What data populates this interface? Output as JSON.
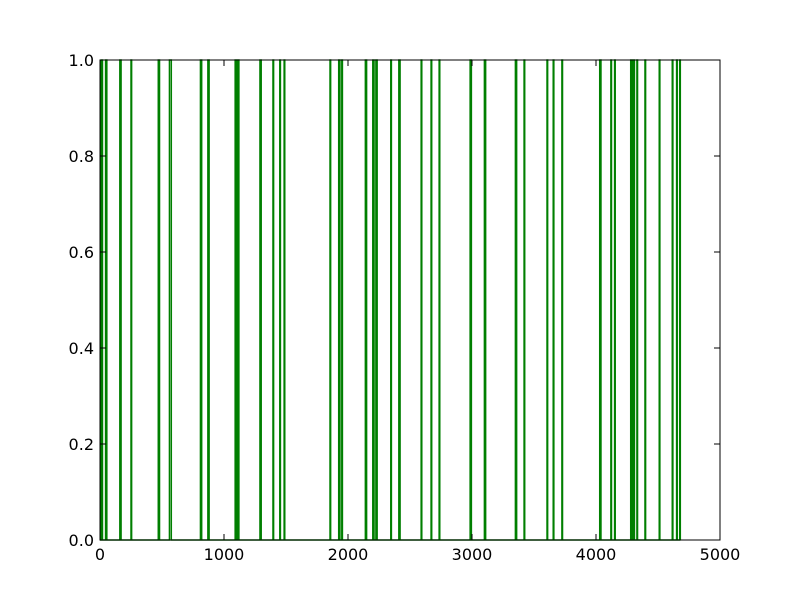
{
  "chart_data": {
    "type": "line",
    "title": "",
    "xlabel": "",
    "ylabel": "",
    "xlim": [
      0,
      5000
    ],
    "ylim": [
      0.0,
      1.0
    ],
    "grid": false,
    "line_color": "#007f00",
    "x_ticks": [
      0,
      1000,
      2000,
      3000,
      4000,
      5000
    ],
    "x_tick_labels": [
      "0",
      "1000",
      "2000",
      "3000",
      "4000",
      "5000"
    ],
    "y_ticks": [
      0.0,
      0.2,
      0.4,
      0.6,
      0.8,
      1.0
    ],
    "y_tick_labels": [
      "0.0",
      "0.2",
      "0.4",
      "0.6",
      "0.8",
      "1.0"
    ],
    "series": [
      {
        "pulses": [
          [
            10,
            20
          ],
          [
            45,
            55
          ],
          [
            160,
            170
          ],
          [
            250,
            255
          ],
          [
            470,
            480
          ],
          [
            560,
            575
          ],
          [
            810,
            820
          ],
          [
            870,
            880
          ],
          [
            1090,
            1100
          ],
          [
            1110,
            1120
          ],
          [
            1290,
            1300
          ],
          [
            1395,
            1400
          ],
          [
            1450,
            1455
          ],
          [
            1485,
            1490
          ],
          [
            1855,
            1860
          ],
          [
            1925,
            1935
          ],
          [
            1950,
            1955
          ],
          [
            2140,
            2150
          ],
          [
            2200,
            2210
          ],
          [
            2225,
            2235
          ],
          [
            2345,
            2350
          ],
          [
            2410,
            2420
          ],
          [
            2590,
            2595
          ],
          [
            2670,
            2675
          ],
          [
            2735,
            2740
          ],
          [
            2985,
            2995
          ],
          [
            3100,
            3110
          ],
          [
            3350,
            3360
          ],
          [
            3420,
            3425
          ],
          [
            3605,
            3610
          ],
          [
            3655,
            3660
          ],
          [
            3725,
            3730
          ],
          [
            4030,
            4040
          ],
          [
            4120,
            4125
          ],
          [
            4150,
            4155
          ],
          [
            4280,
            4290
          ],
          [
            4300,
            4310
          ],
          [
            4330,
            4335
          ],
          [
            4395,
            4400
          ],
          [
            4510,
            4515
          ],
          [
            4615,
            4620
          ],
          [
            4650,
            4655
          ],
          [
            4675,
            4680
          ]
        ]
      }
    ]
  }
}
